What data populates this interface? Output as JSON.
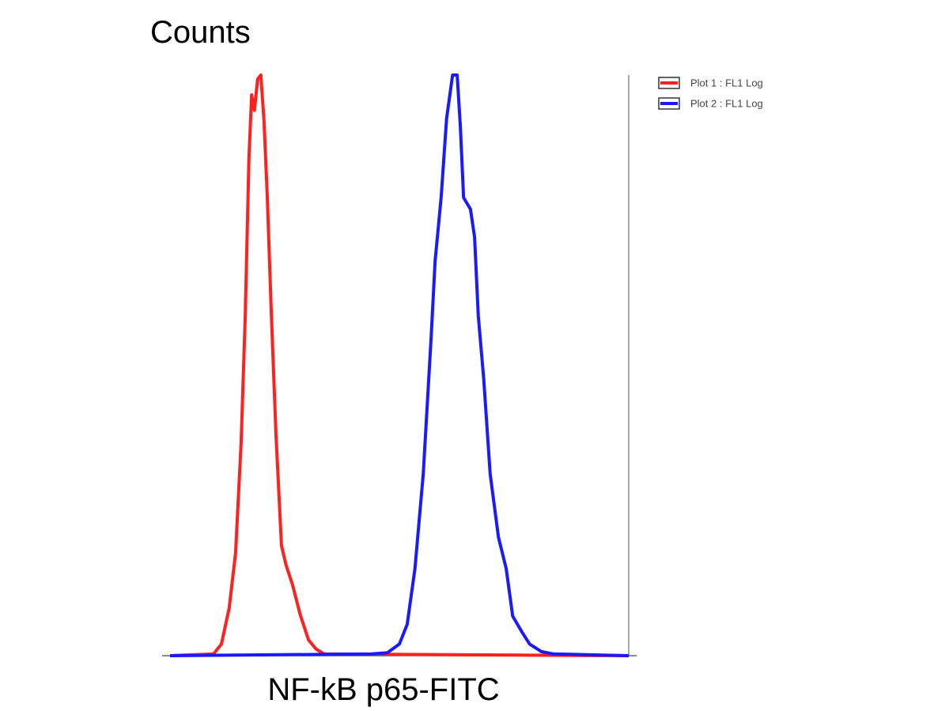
{
  "chart_data": {
    "type": "line",
    "y_label": "Counts",
    "x_label": "NF-kB p65-FITC",
    "xlim": [
      0,
      100
    ],
    "ylim": [
      0,
      100
    ],
    "legend": "top-right",
    "series": [
      {
        "name": "Plot 1 : FL1 Log",
        "color": "#ff2020",
        "x": [
          0,
          9.5,
          11.2,
          12.9,
          14.3,
          15.5,
          16.4,
          17.2,
          17.8,
          18.4,
          19.1,
          19.8,
          20.5,
          21.2,
          22.1,
          23.1,
          24.3,
          25.3,
          26.7,
          28.4,
          30.2,
          31.9,
          33.6,
          100
        ],
        "values": [
          0,
          0.3,
          2,
          8.2,
          17.7,
          36.7,
          58.5,
          85.7,
          96.6,
          93.9,
          99.3,
          100,
          92,
          79,
          58.5,
          38,
          19,
          15.6,
          12.2,
          7,
          2.7,
          1.1,
          0.3,
          0
        ]
      },
      {
        "name": "Plot 2 : FL1 Log",
        "color": "#1a1aff",
        "x": [
          0,
          44,
          47.4,
          50,
          51.7,
          53.4,
          55.2,
          56.9,
          57.8,
          59.1,
          60.3,
          61.6,
          62.6,
          63.3,
          64,
          65.5,
          66.4,
          67.2,
          68.4,
          69.8,
          71.6,
          73.3,
          74.7,
          76.7,
          78.4,
          81,
          83.6,
          100
        ],
        "values": [
          0,
          0.3,
          0.5,
          2,
          5.4,
          15,
          31.3,
          54.4,
          68,
          78.9,
          92.5,
          100,
          100,
          91.2,
          78.9,
          76.9,
          72.1,
          58.5,
          47.6,
          31.3,
          20.4,
          15,
          6.8,
          4.1,
          2,
          0.7,
          0.3,
          0
        ]
      }
    ]
  }
}
